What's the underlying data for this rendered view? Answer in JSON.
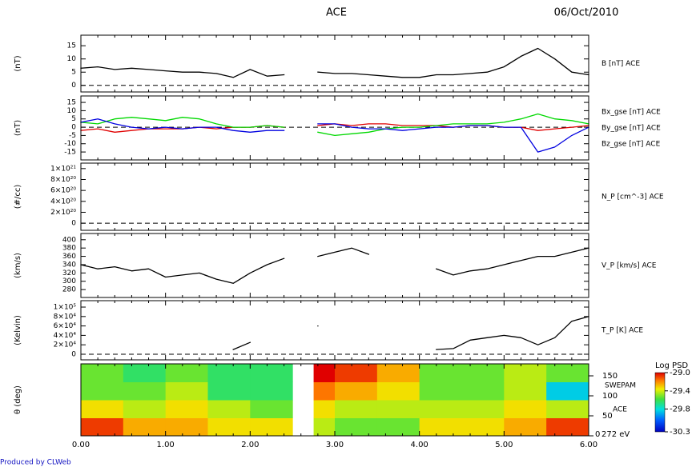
{
  "title": "ACE",
  "date": "06/Oct/2010",
  "footer": "Produced by CLWeb",
  "chart_data": [
    {
      "type": "line",
      "ylabel": "(nT)",
      "xlim": [
        0,
        6
      ],
      "ylim": [
        -2.5,
        19
      ],
      "yticks": [
        0,
        5,
        10,
        15
      ],
      "zero_line": true,
      "x": [
        0,
        0.2,
        0.4,
        0.6,
        0.8,
        1.0,
        1.2,
        1.4,
        1.6,
        1.8,
        2.0,
        2.2,
        2.4,
        2.6,
        2.8,
        3.0,
        3.2,
        3.4,
        3.6,
        3.8,
        4.0,
        4.2,
        4.4,
        4.6,
        4.8,
        5.0,
        5.2,
        5.4,
        5.6,
        5.8,
        6.0
      ],
      "series": [
        {
          "name": "B [nT] ACE",
          "color": "#000000",
          "values": [
            6.5,
            7,
            6,
            6.5,
            6,
            5.5,
            5,
            5,
            4.5,
            3,
            6,
            3.5,
            4,
            null,
            5,
            4.5,
            4.5,
            4,
            3.5,
            3,
            3,
            4,
            4,
            4.5,
            5,
            7,
            11,
            14,
            10,
            5,
            4
          ]
        }
      ]
    },
    {
      "type": "line",
      "ylabel": "(nT)",
      "xlim": [
        0,
        6
      ],
      "ylim": [
        -19.8,
        18.9
      ],
      "yticks": [
        -15,
        -10,
        -5,
        0,
        5,
        10,
        15
      ],
      "zero_line": true,
      "x": [
        0,
        0.2,
        0.4,
        0.6,
        0.8,
        1.0,
        1.2,
        1.4,
        1.6,
        1.8,
        2.0,
        2.2,
        2.4,
        2.6,
        2.8,
        3.0,
        3.2,
        3.4,
        3.6,
        3.8,
        4.0,
        4.2,
        4.4,
        4.6,
        4.8,
        5.0,
        5.2,
        5.4,
        5.6,
        5.8,
        6.0
      ],
      "series": [
        {
          "name": "Bx_gse [nT] ACE",
          "color": "#e00000",
          "values": [
            -2,
            -1,
            -3,
            -2,
            -1,
            -1,
            -1,
            0,
            -1,
            0,
            0,
            1,
            0,
            null,
            1,
            2,
            1,
            2,
            2,
            1,
            1,
            1,
            0,
            1,
            1,
            0,
            0,
            -2,
            -1,
            0,
            1
          ]
        },
        {
          "name": "By_gse [nT] ACE",
          "color": "#00d800",
          "values": [
            3,
            2,
            5,
            6,
            5,
            4,
            6,
            5,
            2,
            0,
            0,
            1,
            0,
            null,
            -3,
            -5,
            -4,
            -3,
            -1,
            0,
            0,
            1,
            2,
            2,
            2,
            3,
            5,
            8,
            5,
            4,
            2
          ]
        },
        {
          "name": "Bz_gse [nT] ACE",
          "color": "#0000e0",
          "values": [
            3,
            5,
            2,
            0,
            -1,
            0,
            -1,
            0,
            0,
            -2,
            -3,
            -2,
            -2,
            null,
            2,
            2,
            0,
            -1,
            -1,
            -2,
            -1,
            0,
            0,
            1,
            1,
            0,
            0,
            -15,
            -12,
            -5,
            0
          ]
        }
      ]
    },
    {
      "type": "line",
      "ylabel": "(#/cc)",
      "xlim": [
        0,
        6
      ],
      "ylim": [
        -1.3e+20,
        1.1e+21
      ],
      "zero_line": true,
      "yticks": [
        0,
        {
          "value": 2e+20,
          "label": "2×10²⁰"
        },
        {
          "value": 4e+20,
          "label": "4×10²⁰"
        },
        {
          "value": 6e+20,
          "label": "6×10²⁰"
        },
        {
          "value": 8e+20,
          "label": "8×10²⁰"
        },
        {
          "value": 1e+21,
          "label": "1×10²¹"
        }
      ],
      "series": [
        {
          "name": "N_P [cm^-3] ACE",
          "color": "#000000"
        }
      ]
    },
    {
      "type": "line",
      "ylabel": "(km/s)",
      "xlim": [
        0,
        6
      ],
      "ylim": [
        261,
        415
      ],
      "yticks": [
        280,
        300,
        320,
        340,
        360,
        380,
        400
      ],
      "x": [
        0,
        0.2,
        0.4,
        0.6,
        0.8,
        1.0,
        1.2,
        1.4,
        1.6,
        1.8,
        2.0,
        2.2,
        2.4,
        2.6,
        2.8,
        3.0,
        3.2,
        3.4,
        3.6,
        3.8,
        4.0,
        4.2,
        4.4,
        4.6,
        4.8,
        5.0,
        5.2,
        5.4,
        5.6,
        5.8,
        6.0
      ],
      "series": [
        {
          "name": "V_P [km/s] ACE",
          "color": "#000000",
          "values": [
            340,
            330,
            335,
            325,
            330,
            310,
            315,
            320,
            305,
            295,
            320,
            340,
            355,
            null,
            360,
            370,
            380,
            365,
            null,
            null,
            null,
            330,
            315,
            325,
            330,
            340,
            350,
            360,
            360,
            370,
            380
          ]
        }
      ]
    },
    {
      "type": "line",
      "ylabel": "(Kelvin)",
      "xlim": [
        0,
        6
      ],
      "ylim": [
        -11900,
        113600
      ],
      "zero_line": true,
      "yticks": [
        0,
        {
          "value": 20000,
          "label": "2×10⁴"
        },
        {
          "value": 40000,
          "label": "4×10⁴"
        },
        {
          "value": 60000,
          "label": "6×10⁴"
        },
        {
          "value": 80000,
          "label": "8×10⁴"
        },
        {
          "value": 100000,
          "label": "1×10⁵"
        }
      ],
      "x": [
        0,
        0.2,
        0.4,
        0.6,
        0.8,
        1.0,
        1.2,
        1.4,
        1.6,
        1.8,
        2.0,
        2.2,
        2.4,
        2.6,
        2.8,
        3.0,
        3.2,
        3.4,
        3.6,
        3.8,
        4.0,
        4.2,
        4.4,
        4.6,
        4.8,
        5.0,
        5.2,
        5.4,
        5.6,
        5.8,
        6.0
      ],
      "series": [
        {
          "name": "T_P [K] ACE",
          "color": "#000000",
          "values": [
            null,
            null,
            null,
            null,
            null,
            null,
            null,
            null,
            null,
            10000,
            25000,
            null,
            null,
            null,
            60000,
            null,
            null,
            null,
            null,
            null,
            null,
            10000,
            12000,
            30000,
            35000,
            40000,
            35000,
            20000,
            35000,
            70000,
            80000
          ]
        }
      ]
    },
    {
      "type": "heatmap",
      "ylabel": "θ (deg)",
      "xlim": [
        0,
        6
      ],
      "ylim": [
        0,
        180
      ],
      "xticks": [
        {
          "value": 0,
          "label": "0.00"
        },
        {
          "value": 1,
          "label": "1.00"
        },
        {
          "value": 2,
          "label": "2.00"
        },
        {
          "value": 3,
          "label": "3.00"
        },
        {
          "value": 4,
          "label": "4.00"
        },
        {
          "value": 5,
          "label": "5.00"
        },
        {
          "value": 6,
          "label": "6.00"
        }
      ],
      "yticks": [
        0,
        50,
        100,
        150
      ],
      "instrument": "SWEPAM",
      "spacecraft": "ACE",
      "energy_label": "272 eV",
      "x_bins": [
        0,
        0.5,
        1,
        1.5,
        2,
        2.5,
        2.75,
        3,
        3.5,
        4,
        4.5,
        5,
        5.5,
        6
      ],
      "y_bins": [
        0,
        45,
        90,
        135,
        180
      ],
      "z": [
        [
          -29.1,
          -29.4,
          -29.6,
          -29.6
        ],
        [
          -29.3,
          -29.5,
          -29.6,
          -29.7
        ],
        [
          -29.3,
          -29.4,
          -29.5,
          -29.6
        ],
        [
          -29.4,
          -29.5,
          -29.7,
          -29.7
        ],
        [
          -29.4,
          -29.6,
          -29.7,
          -29.7
        ],
        [
          null,
          null,
          null,
          null
        ],
        [
          -29.5,
          -29.4,
          -29.2,
          -29.0
        ],
        [
          -29.6,
          -29.5,
          -29.3,
          -29.1
        ],
        [
          -29.6,
          -29.5,
          -29.4,
          -29.3
        ],
        [
          -29.4,
          -29.5,
          -29.6,
          -29.6
        ],
        [
          -29.4,
          -29.5,
          -29.6,
          -29.6
        ],
        [
          -29.3,
          -29.4,
          -29.5,
          -29.5
        ],
        [
          -29.1,
          -29.5,
          -29.9,
          -29.6
        ]
      ],
      "colorbar": {
        "title": "Log PSD",
        "clim": [
          -30.3,
          -29.0
        ],
        "ticks": [
          {
            "value": -29.0,
            "label": "-29.0"
          },
          -29.4,
          -29.8,
          -30.3
        ]
      }
    }
  ]
}
